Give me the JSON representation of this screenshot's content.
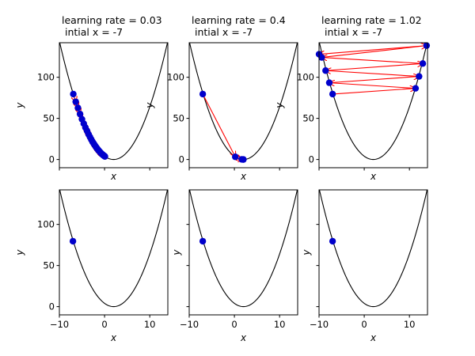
{
  "chart_data": [
    {
      "type": "line",
      "title_lines": [
        "learning rate = 0.03",
        " intial x = -7"
      ],
      "xlabel": "x",
      "ylabel": "y",
      "xlim": [
        -10,
        14
      ],
      "ylim": [
        -10,
        142
      ],
      "xticks": [],
      "yticks": [
        0,
        50,
        100
      ],
      "curve": {
        "function": "y = (x-2)^2",
        "x_range": [
          -10,
          14
        ],
        "color": "#000000"
      },
      "points": {
        "color": "#0000cc",
        "x": [
          -6.92,
          -6.38,
          -5.89,
          -5.43,
          -5.0,
          -4.6,
          -4.22,
          -3.87,
          -3.54,
          -3.23,
          -2.93,
          -2.66,
          -2.4,
          -2.15,
          -1.92,
          -1.7,
          -1.5,
          -1.31,
          -1.13,
          -0.96,
          -0.8,
          -0.65,
          -0.51,
          -0.38,
          -0.25,
          -0.13,
          -0.02,
          0.08
        ],
        "y": [
          79.57,
          70.18,
          62.81,
          55.31,
          49.0,
          43.56,
          38.69,
          34.69,
          30.69,
          27.35,
          24.26,
          21.53,
          19.36,
          17.22,
          15.37,
          13.69,
          12.25,
          10.96,
          9.8,
          8.76,
          7.84,
          7.02,
          6.3,
          5.66,
          5.06,
          4.54,
          4.08,
          3.69
        ]
      },
      "arrow_color": "#ff0000"
    },
    {
      "type": "line",
      "title_lines": [
        "learning rate = 0.4",
        " intial x = -7"
      ],
      "xlabel": "x",
      "ylabel": "y",
      "xlim": [
        -10,
        14
      ],
      "ylim": [
        -10,
        142
      ],
      "xticks": [],
      "yticks": [
        0,
        50,
        100
      ],
      "curve": {
        "function": "y = (x-2)^2",
        "x_range": [
          -10,
          14
        ],
        "color": "#000000"
      },
      "points": {
        "color": "#0000cc",
        "x": [
          -7,
          0.2,
          1.64,
          1.93,
          1.99
        ],
        "y": [
          79.57,
          3.24,
          0.13,
          0.0,
          0.0
        ]
      },
      "arrow_color": "#ff0000"
    },
    {
      "type": "line",
      "title_lines": [
        "learning rate = 1.02",
        " intial x = -7"
      ],
      "xlabel": "x",
      "ylabel": "y",
      "xlim": [
        -10,
        14
      ],
      "ylim": [
        -10,
        142
      ],
      "xticks": [],
      "yticks": [
        0,
        50,
        100
      ],
      "curve": {
        "function": "y = (x-2)^2",
        "x_range": [
          -10,
          14
        ],
        "color": "#000000"
      },
      "points": {
        "color": "#0000cc",
        "x": [
          -7,
          11.36,
          -7.73,
          12.13,
          -8.55,
          12.96,
          -9.41,
          13.8,
          -10
        ],
        "y": [
          79.57,
          86.53,
          93.31,
          101.01,
          108.09,
          116.67,
          124.11,
          138.5,
          128.0
        ]
      },
      "arrow_color": "#ff0000"
    },
    {
      "type": "line",
      "xlabel": "x",
      "ylabel": "y",
      "xlim": [
        -10,
        14
      ],
      "ylim": [
        -10,
        142
      ],
      "xticks": [
        -10,
        0,
        10
      ],
      "yticks": [
        0,
        50,
        100
      ],
      "curve": {
        "function": "y = (x-2)^2",
        "x_range": [
          -10,
          14
        ],
        "color": "#000000"
      },
      "points": {
        "color": "#0000cc",
        "x": [
          -7
        ],
        "y": [
          79.57
        ]
      }
    },
    {
      "type": "line",
      "xlabel": "x",
      "ylabel": "y",
      "xlim": [
        -10,
        14
      ],
      "ylim": [
        -10,
        142
      ],
      "xticks": [
        -10,
        0,
        10
      ],
      "yticks": [],
      "curve": {
        "function": "y = (x-2)^2",
        "x_range": [
          -10,
          14
        ],
        "color": "#000000"
      },
      "points": {
        "color": "#0000cc",
        "x": [
          -7
        ],
        "y": [
          79.57
        ]
      }
    },
    {
      "type": "line",
      "xlabel": "x",
      "ylabel": "y",
      "xlim": [
        -10,
        14
      ],
      "ylim": [
        -10,
        142
      ],
      "xticks": [
        -10,
        0,
        10
      ],
      "yticks": [],
      "curve": {
        "function": "y = (x-2)^2",
        "x_range": [
          -10,
          14
        ],
        "color": "#000000"
      },
      "points": {
        "color": "#0000cc",
        "x": [
          -7
        ],
        "y": [
          79.57
        ]
      }
    }
  ]
}
